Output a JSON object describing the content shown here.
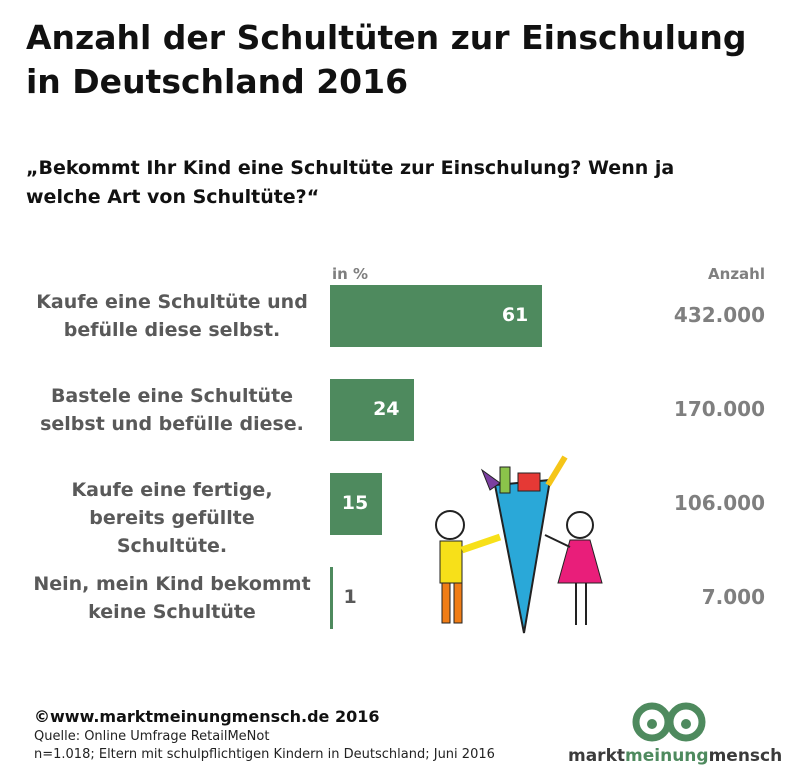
{
  "chart_data": {
    "type": "bar",
    "title": "Anzahl der Schultüten zur Einschulung in Deutschland 2016",
    "subtitle": "„Bekommt Ihr Kind eine Schultüte zur Einschulung?  Wenn ja welche Art von Schultüte?“",
    "categories": [
      "Kaufe eine Schultüte und befülle diese selbst.",
      "Bastele eine Schultüte selbst und befülle diese.",
      "Kaufe eine fertige, bereits gefüllte Schultüte.",
      "Nein, mein Kind bekommt keine Schultüte"
    ],
    "series": [
      {
        "name": "in %",
        "color": "#4e8a5e",
        "values": [
          61,
          24,
          15,
          1
        ]
      },
      {
        "name": "Anzahl",
        "values": [
          432000,
          170000,
          106000,
          7000
        ],
        "value_labels": [
          "432.000",
          "170.000",
          "106.000",
          "7.000"
        ]
      }
    ]
  },
  "footer": {
    "copyright": "©www.marktmeinungmensch.de 2016",
    "source": "Quelle: Online Umfrage RetailMeNot",
    "sample": "n=1.018; Eltern mit schulpflichtigen Kindern in Deutschland; Juni 2016",
    "logo": [
      "markt",
      "meinung",
      "mensch"
    ]
  }
}
